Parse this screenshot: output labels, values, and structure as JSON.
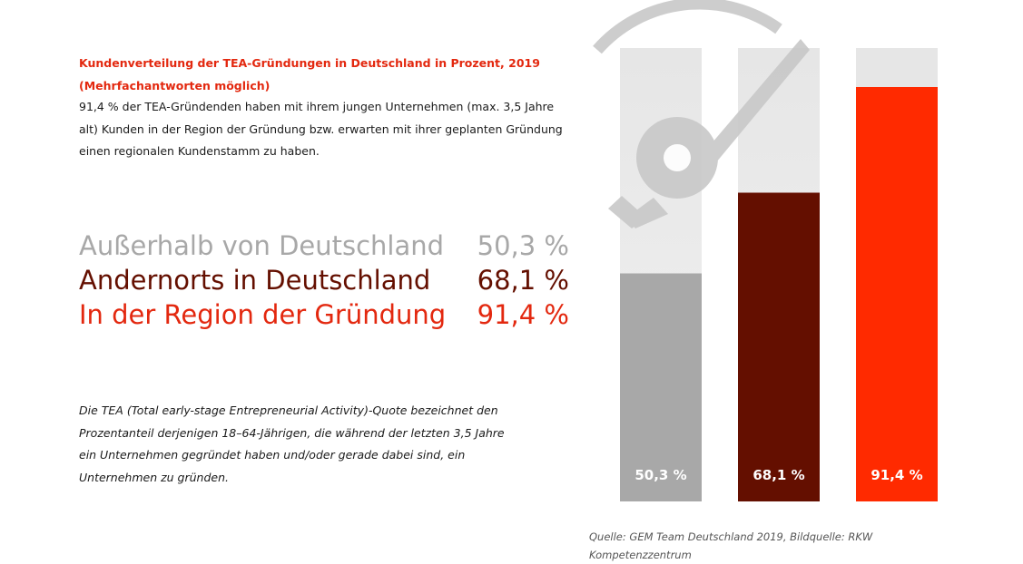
{
  "header": {
    "title_line1": "Kundenverteilung der TEA-Gründungen in Deutschland in Prozent, 2019",
    "title_line2": "(Mehrfachantworten möglich)",
    "intro_line1": "91,4 % der TEA-Gründenden haben mit ihrem jungen Unternehmen (max. 3,5 Jahre",
    "intro_line2": "alt) Kunden in der Region der Gründung bzw. erwarten mit ihrer geplanten Gründung",
    "intro_line3": "einen regionalen Kundenstamm zu haben."
  },
  "legend": {
    "items": [
      {
        "label": "Außerhalb von Deutschland",
        "value": "50,3 %",
        "color": "#a8a8a8"
      },
      {
        "label": "Andernorts in Deutschland",
        "value": "68,1 %",
        "color": "#640f00"
      },
      {
        "label": "In der Region der Gründung",
        "value": "91,4 %",
        "color": "#e3280f"
      }
    ]
  },
  "note": {
    "line1": "Die TEA (Total early-stage Entrepreneurial Activity)-Quote bezeichnet den",
    "line2": "Prozentanteil derjenigen 18–64-Jährigen, die während der letzten 3,5 Jahre",
    "line3": "ein Unternehmen gegründet haben und/oder gerade dabei sind, ein",
    "line4": "Unternehmen zu gründen."
  },
  "source": "Quelle: GEM Team Deutschland 2019, Bildquelle: RKW Kompetenzzentrum",
  "chart_data": {
    "type": "bar",
    "categories": [
      "Außerhalb von Deutschland",
      "Andernorts in Deutschland",
      "In der Region der Gründung"
    ],
    "values": [
      50.3,
      68.1,
      91.4
    ],
    "value_labels": [
      "50,3 %",
      "68,1 %",
      "91,4 %"
    ],
    "colors": [
      "#a8a8a8",
      "#640f00",
      "#ff2a00"
    ],
    "track_color": "#e6e6e6",
    "label_color": "#ffffff",
    "ylim": [
      0,
      100
    ],
    "grid": false,
    "decoration": "gauge-icon"
  }
}
